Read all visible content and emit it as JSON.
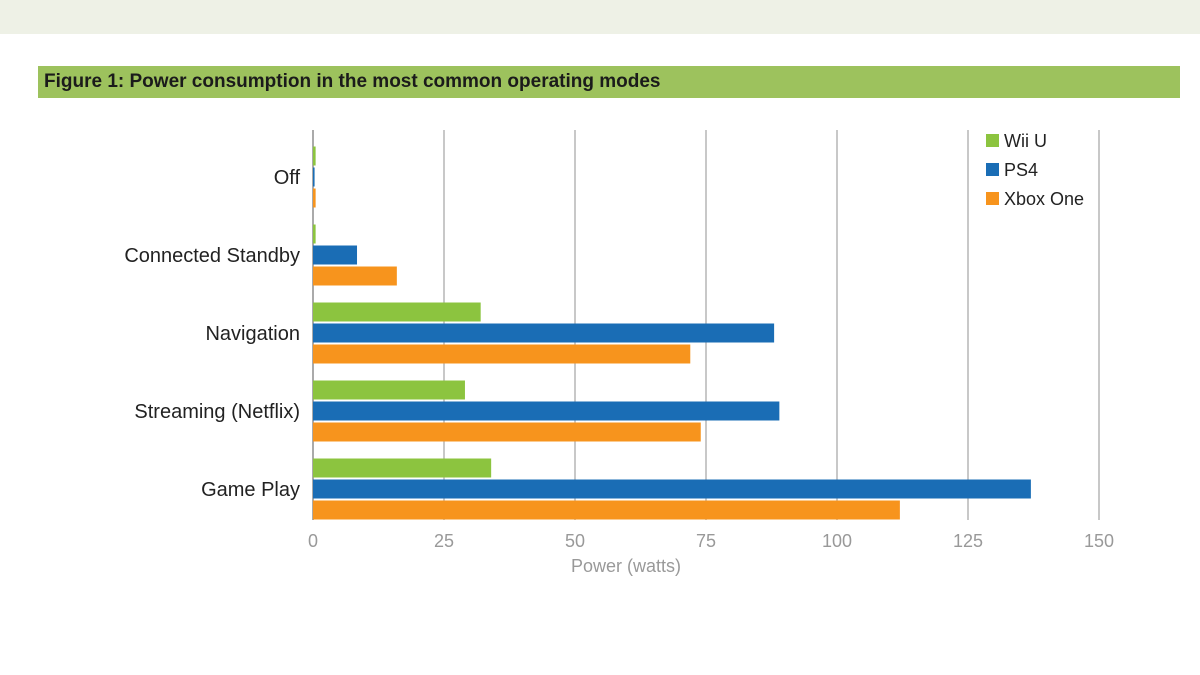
{
  "chart_data": {
    "type": "bar",
    "orientation": "horizontal",
    "title": "Figure 1: Power consumption in the most common operating modes",
    "xlabel": "Power (watts)",
    "ylabel": "",
    "xlim": [
      0,
      150
    ],
    "xticks": [
      0,
      25,
      50,
      75,
      100,
      125,
      150
    ],
    "grid": true,
    "legend_position": "top-right",
    "categories": [
      "Off",
      "Connected Standby",
      "Navigation",
      "Streaming (Netflix)",
      "Game Play"
    ],
    "series": [
      {
        "name": "Wii U",
        "color": "#8cc43f",
        "values": [
          0.5,
          0.5,
          32,
          29,
          34
        ]
      },
      {
        "name": "PS4",
        "color": "#1a6db5",
        "values": [
          0.3,
          8.4,
          88,
          89,
          137
        ]
      },
      {
        "name": "Xbox One",
        "color": "#f7941d",
        "values": [
          0.5,
          16,
          72,
          74,
          112
        ]
      }
    ]
  }
}
